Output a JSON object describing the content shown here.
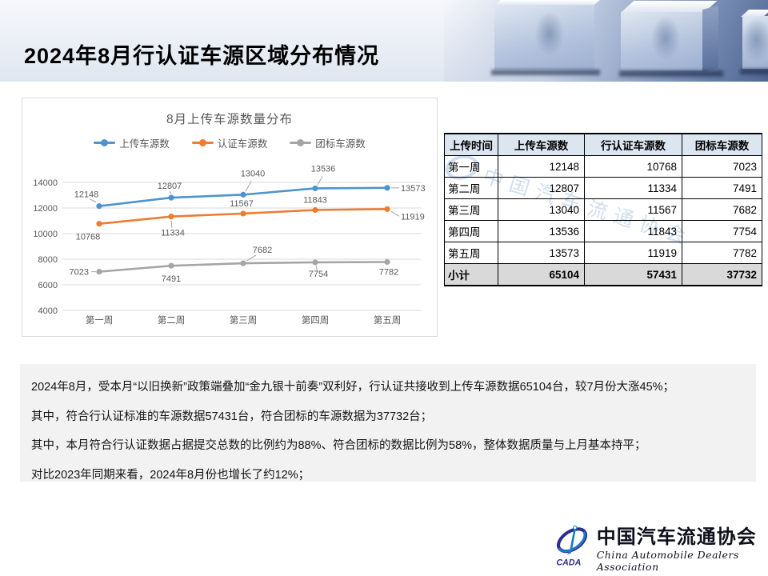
{
  "slide": {
    "title": "2024年8月行认证车源区域分布情况"
  },
  "chart_data": {
    "type": "line",
    "title": "8月上传车源数量分布",
    "categories": [
      "第一周",
      "第二周",
      "第三周",
      "第四周",
      "第五周"
    ],
    "series": [
      {
        "name": "上传车源数",
        "color": "#4D94CE",
        "values": [
          12148,
          12807,
          13040,
          13536,
          13573
        ]
      },
      {
        "name": "认证车源数",
        "color": "#ED7D31",
        "values": [
          10768,
          11334,
          11567,
          11843,
          11919
        ]
      },
      {
        "name": "团标车源数",
        "color": "#A5A5A5",
        "values": [
          7023,
          7491,
          7682,
          7754,
          7782
        ]
      }
    ],
    "ylim": [
      4000,
      14000
    ],
    "y_ticks": [
      4000,
      6000,
      8000,
      10000,
      12000,
      14000
    ],
    "grid": true,
    "legend_position": "top",
    "gridline_color": "#d9d9d9",
    "axis_text_color": "#595959"
  },
  "table": {
    "headers": [
      "上传时间",
      "上传车源数",
      "行认证车源数",
      "团标车源数"
    ],
    "rows": [
      [
        "第一周",
        "12148",
        "10768",
        "7023"
      ],
      [
        "第二周",
        "12807",
        "11334",
        "7491"
      ],
      [
        "第三周",
        "13040",
        "11567",
        "7682"
      ],
      [
        "第四周",
        "13536",
        "11843",
        "7754"
      ],
      [
        "第五周",
        "13573",
        "11919",
        "7782"
      ]
    ],
    "total_row": [
      "小计",
      "65104",
      "57431",
      "37732"
    ],
    "header_bg": "#DCE6F1",
    "total_bg": "#D9D9D9"
  },
  "summary": {
    "lines": [
      "2024年8月，受本月“以旧换新”政策端叠加“金九银十前奏”双利好，行认证共接收到上传车源数据65104台，较7月份大涨45%；",
      "其中，符合行认证标准的车源数据57431台，符合团标的车源数据为37732台；",
      "其中，本月符合行认证数据占据提交总数的比例约为88%、符合团标的数据比例为58%，整体数据质量与上月基本持平；",
      "对比2023年同期来看，2024年8月份也增长了约12%；"
    ]
  },
  "footer": {
    "logo_cn": "中国汽车流通协会",
    "logo_en": "China Automobile Dealers Association",
    "logo_acronym": "CADA",
    "logo_blue": "#1E7AC4",
    "logo_navy": "#2B2E8C"
  },
  "watermark": {
    "text": "中国汽车流通协会"
  }
}
